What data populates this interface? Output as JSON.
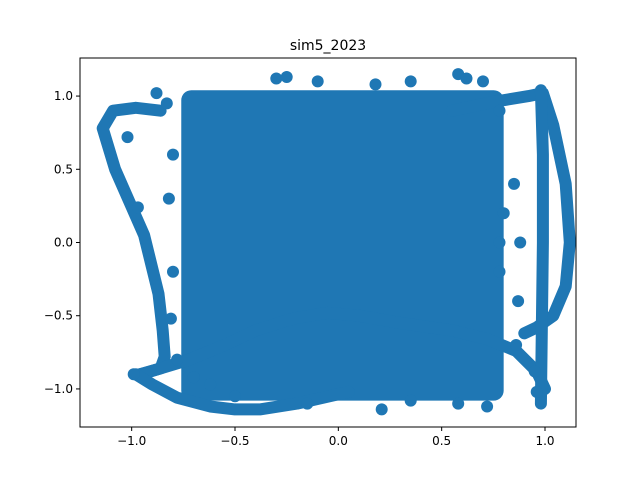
{
  "chart_data": {
    "type": "scatter",
    "title": "sim5_2023",
    "xlabel": "",
    "ylabel": "",
    "xlim": [
      -1.25,
      1.15
    ],
    "ylim": [
      -1.26,
      1.26
    ],
    "xticks": [
      -1.0,
      -0.5,
      0.0,
      0.5,
      1.0
    ],
    "xtick_labels": [
      "−1.0",
      "−0.5",
      "0.0",
      "0.5",
      "1.0"
    ],
    "yticks": [
      -1.0,
      -0.5,
      0.0,
      0.5,
      1.0
    ],
    "ytick_labels": [
      "−1.0",
      "−0.5",
      "0.0",
      "0.5",
      "1.0"
    ],
    "grid": false,
    "marker_color": "#1f77b4",
    "dense_region": {
      "x": [
        -0.76,
        0.8
      ],
      "y": [
        -1.08,
        1.04
      ]
    },
    "series": [
      {
        "name": "",
        "segments": [
          {
            "x": [
              -0.86,
              -0.98,
              -1.09,
              -1.14,
              -1.08,
              -0.94,
              -0.87,
              -0.85,
              -0.84,
              -0.86,
              -0.93,
              -0.96
            ],
            "y": [
              0.9,
              0.92,
              0.9,
              0.78,
              0.5,
              0.05,
              -0.35,
              -0.6,
              -0.78,
              -0.86,
              -0.89,
              -0.9
            ]
          },
          {
            "x": [
              -0.96,
              -0.86,
              -0.72,
              -0.55,
              -0.4,
              -0.22,
              -0.05,
              0.1,
              0.3,
              0.55,
              0.72,
              0.86,
              0.96,
              1.0
            ],
            "y": [
              -0.9,
              -0.86,
              -0.8,
              -0.7,
              -0.6,
              -0.52,
              -0.48,
              -0.5,
              -0.55,
              -0.6,
              -0.66,
              -0.74,
              -0.88,
              -1.0
            ]
          },
          {
            "x": [
              -0.98,
              -0.9,
              -0.78,
              -0.62,
              -0.5,
              -0.38,
              -0.2,
              0.05
            ],
            "y": [
              -0.9,
              -0.97,
              -1.06,
              -1.12,
              -1.14,
              -1.14,
              -1.1,
              -1.02
            ]
          },
          {
            "x": [
              0.55,
              0.75,
              0.92,
              0.99,
              1.04,
              1.1,
              1.12,
              1.1,
              1.04,
              0.96,
              0.9
            ],
            "y": [
              0.9,
              0.96,
              1.0,
              1.02,
              0.8,
              0.4,
              0.0,
              -0.3,
              -0.5,
              -0.58,
              -0.62
            ]
          },
          {
            "x": [
              0.98,
              0.99,
              0.99,
              0.98
            ],
            "y": [
              1.04,
              0.6,
              0.0,
              -1.1
            ]
          }
        ],
        "points": [
          {
            "x": -1.02,
            "y": 0.72
          },
          {
            "x": -0.97,
            "y": 0.24
          },
          {
            "x": -0.99,
            "y": -0.9
          },
          {
            "x": -0.88,
            "y": 1.02
          },
          {
            "x": -0.83,
            "y": 0.95
          },
          {
            "x": -0.8,
            "y": 0.6
          },
          {
            "x": -0.82,
            "y": 0.3
          },
          {
            "x": -0.8,
            "y": -0.2
          },
          {
            "x": -0.81,
            "y": -0.52
          },
          {
            "x": -0.78,
            "y": -0.8
          },
          {
            "x": -0.7,
            "y": -0.92
          },
          {
            "x": -0.62,
            "y": -0.97
          },
          {
            "x": -0.5,
            "y": -1.05
          },
          {
            "x": -0.3,
            "y": 1.12
          },
          {
            "x": -0.25,
            "y": 1.13
          },
          {
            "x": -0.1,
            "y": 1.1
          },
          {
            "x": 0.18,
            "y": 1.08
          },
          {
            "x": 0.35,
            "y": 1.1
          },
          {
            "x": 0.58,
            "y": 1.15
          },
          {
            "x": 0.62,
            "y": 1.12
          },
          {
            "x": 0.7,
            "y": 1.1
          },
          {
            "x": 0.78,
            "y": 0.9
          },
          {
            "x": 0.85,
            "y": 0.4
          },
          {
            "x": 0.88,
            "y": 0.0
          },
          {
            "x": 0.87,
            "y": -0.4
          },
          {
            "x": 0.86,
            "y": -0.7
          },
          {
            "x": 0.95,
            "y": -0.88
          },
          {
            "x": 0.96,
            "y": -1.02
          },
          {
            "x": 0.72,
            "y": -1.12
          },
          {
            "x": 0.58,
            "y": -1.1
          },
          {
            "x": 0.35,
            "y": -1.08
          },
          {
            "x": 0.21,
            "y": -1.14
          },
          {
            "x": -0.15,
            "y": -1.1
          },
          {
            "x": 0.78,
            "y": 0.0
          },
          {
            "x": 0.8,
            "y": 0.2
          },
          {
            "x": 0.78,
            "y": -0.2
          }
        ]
      }
    ]
  }
}
